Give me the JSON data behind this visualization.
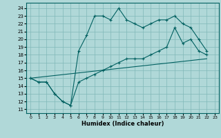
{
  "xlabel": "Humidex (Indice chaleur)",
  "bg_color": "#b0d8d8",
  "grid_color": "#80b8b8",
  "line_color": "#006060",
  "xlim": [
    -0.5,
    23.5
  ],
  "ylim": [
    10.5,
    24.7
  ],
  "xticks": [
    0,
    1,
    2,
    3,
    4,
    5,
    6,
    7,
    8,
    9,
    10,
    11,
    12,
    13,
    14,
    15,
    16,
    17,
    18,
    19,
    20,
    21,
    22,
    23
  ],
  "yticks": [
    11,
    12,
    13,
    14,
    15,
    16,
    17,
    18,
    19,
    20,
    21,
    22,
    23,
    24
  ],
  "line_main": {
    "x": [
      0,
      1,
      2,
      3,
      4,
      5,
      6,
      7,
      8,
      9,
      10,
      11,
      12,
      13,
      14,
      15,
      16,
      17,
      18,
      19,
      20,
      21,
      22
    ],
    "y": [
      15,
      14.5,
      14.5,
      13,
      12,
      11.5,
      18.5,
      20.5,
      23,
      23,
      22.5,
      24,
      22.5,
      22,
      21.5,
      22,
      22.5,
      22.5,
      23,
      22,
      21.5,
      20,
      18.5
    ]
  },
  "line_mid": {
    "x": [
      0,
      1,
      2,
      3,
      4,
      5,
      6,
      7,
      8,
      9,
      10,
      11,
      12,
      13,
      14,
      15,
      16,
      17,
      18,
      19,
      20,
      21,
      22
    ],
    "y": [
      15,
      14.5,
      14.5,
      13,
      12,
      11.5,
      14.5,
      15,
      15.5,
      16,
      16.5,
      17,
      17.5,
      17.5,
      17.5,
      18,
      18.5,
      19,
      21.5,
      19.5,
      20,
      18.5,
      18
    ]
  },
  "line_low": {
    "x": [
      0,
      22
    ],
    "y": [
      15,
      17.5
    ]
  }
}
